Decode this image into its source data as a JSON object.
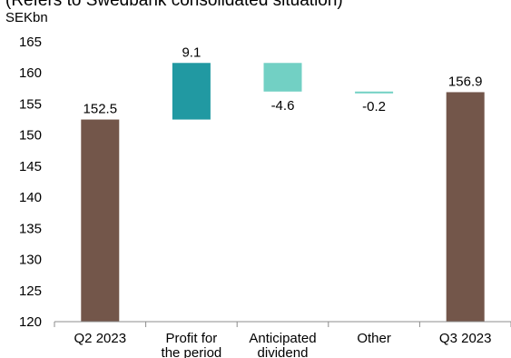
{
  "chart_data": {
    "type": "bar",
    "subtype": "waterfall",
    "title": "(Refers to Swedbank consolidated situation)",
    "ylabel": "SEKbn",
    "ylim": [
      120,
      165
    ],
    "yticks": [
      120,
      125,
      130,
      135,
      140,
      145,
      150,
      155,
      160,
      165
    ],
    "grid": false,
    "categories": [
      [
        "Q2 2023"
      ],
      [
        "Profit for",
        "the period"
      ],
      [
        "Anticipated",
        "dividend"
      ],
      [
        "Other"
      ],
      [
        "Q3 2023"
      ]
    ],
    "bars": [
      {
        "kind": "total",
        "start": 120,
        "end": 152.5,
        "label": "152.5",
        "color": "#73564a"
      },
      {
        "kind": "delta",
        "start": 152.5,
        "end": 161.6,
        "label": "9.1",
        "color": "#2199a2"
      },
      {
        "kind": "delta",
        "start": 161.6,
        "end": 157.0,
        "label": "-4.6",
        "color": "#72d0c4"
      },
      {
        "kind": "delta",
        "start": 157.0,
        "end": 156.8,
        "label": "-0.2",
        "color": "#72d0c4"
      },
      {
        "kind": "total",
        "start": 120,
        "end": 156.9,
        "label": "156.9",
        "color": "#73564a"
      }
    ]
  }
}
